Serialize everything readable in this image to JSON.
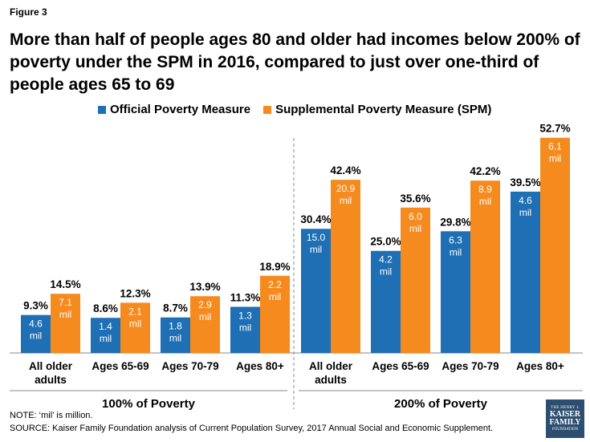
{
  "figure_label": "Figure 3",
  "title": "More than half of people ages 80 and older had incomes below 200% of poverty under the SPM in 2016, compared to just over one-third of people ages 65 to 69",
  "legend": {
    "official": "Official Poverty Measure",
    "spm": "Supplemental Poverty Measure (SPM)"
  },
  "colors": {
    "official": "#1f6fb5",
    "spm": "#f58b1f"
  },
  "note": "NOTE: ‘mil’ is million.",
  "source": "SOURCE: Kaiser Family Foundation  analysis of Current Population Survey, 2017 Annual Social and Economic Supplement.",
  "logo": {
    "line1": "THE HENRY J.",
    "line2": "KAISER FAMILY",
    "line3": "FOUNDATION"
  },
  "chart_data": {
    "type": "bar",
    "ylim": [
      0,
      55
    ],
    "groups": [
      {
        "label": "100% of Poverty",
        "categories": [
          "All older adults",
          "Ages 65-69",
          "Ages 70-79",
          "Ages 80+"
        ],
        "series": [
          {
            "name": "Official Poverty Measure",
            "values": [
              9.3,
              8.6,
              8.7,
              11.3
            ],
            "value_labels": [
              "9.3%",
              "8.6%",
              "8.7%",
              "11.3%"
            ],
            "count_labels": [
              "4.6 mil",
              "1.4 mil",
              "1.8 mil",
              "1.3 mil"
            ]
          },
          {
            "name": "Supplemental Poverty Measure (SPM)",
            "values": [
              14.5,
              12.3,
              13.9,
              18.9
            ],
            "value_labels": [
              "14.5%",
              "12.3%",
              "13.9%",
              "18.9%"
            ],
            "count_labels": [
              "7.1 mil",
              "2.1 mil",
              "2.9 mil",
              "2.2 mil"
            ]
          }
        ]
      },
      {
        "label": "200% of Poverty",
        "categories": [
          "All older adults",
          "Ages 65-69",
          "Ages 70-79",
          "Ages 80+"
        ],
        "series": [
          {
            "name": "Official Poverty Measure",
            "values": [
              30.4,
              25.0,
              29.8,
              39.5
            ],
            "value_labels": [
              "30.4%",
              "25.0%",
              "29.8%",
              "39.5%"
            ],
            "count_labels": [
              "15.0 mil",
              "4.2 mil",
              "6.3 mil",
              "4.6 mil"
            ]
          },
          {
            "name": "Supplemental Poverty Measure (SPM)",
            "values": [
              42.4,
              35.6,
              42.2,
              52.7
            ],
            "value_labels": [
              "42.4%",
              "35.6%",
              "42.2%",
              "52.7%"
            ],
            "count_labels": [
              "20.9 mil",
              "6.0 mil",
              "8.9 mil",
              "6.1 mil"
            ]
          }
        ]
      }
    ]
  }
}
